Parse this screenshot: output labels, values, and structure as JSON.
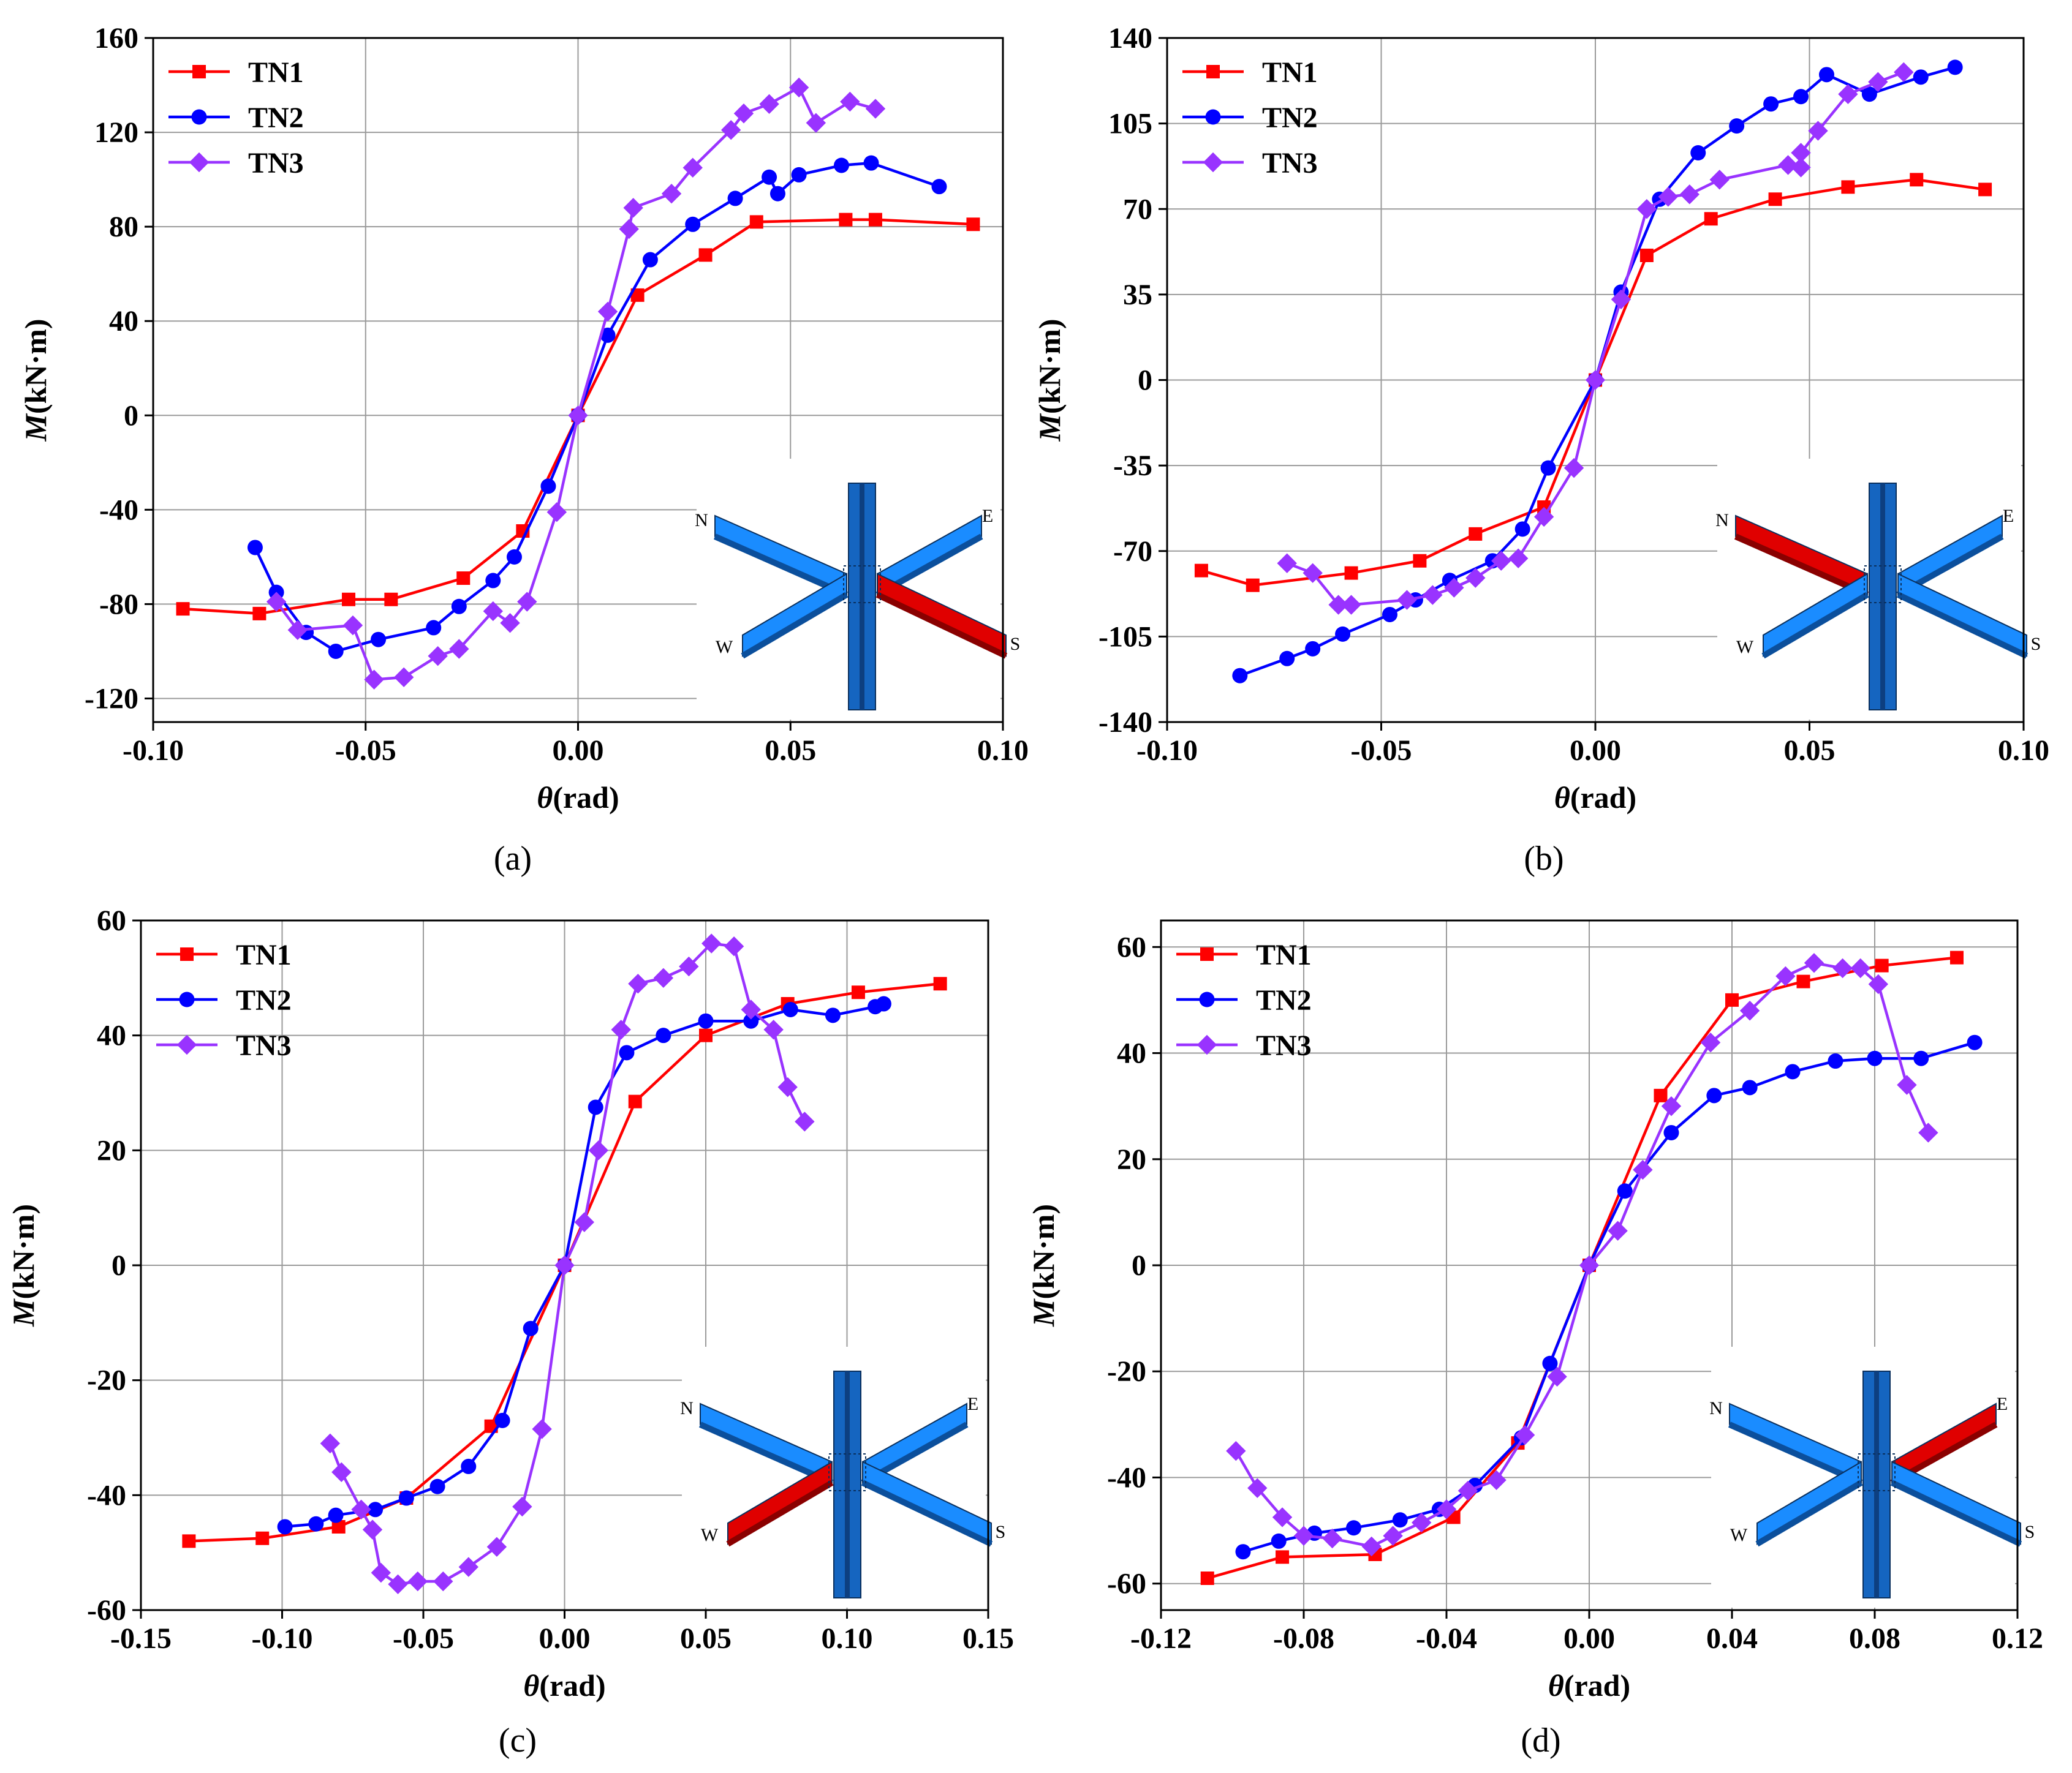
{
  "colors": {
    "TN1": "#ff0000",
    "TN2": "#0000ff",
    "TN3": "#9933ff",
    "beam_blue": "#1a8cff",
    "beam_red": "#e00000",
    "column_blue": "#1565c0"
  },
  "chart_data": [
    {
      "panel_label": "(a)",
      "type": "line",
      "xlabel_sym": "θ",
      "xlabel_unit": "(rad)",
      "ylabel_sym": "M",
      "ylabel_unit": "(kN·m)",
      "xlim": [
        -0.1,
        0.1
      ],
      "ylim": [
        -130,
        160
      ],
      "xticks": [
        -0.1,
        -0.05,
        0.0,
        0.05,
        0.1
      ],
      "xtick_labels": [
        "-0.10",
        "-0.05",
        "0.00",
        "0.05",
        "0.10"
      ],
      "yticks": [
        -120,
        -80,
        -40,
        0,
        40,
        80,
        120,
        160
      ],
      "ytick_labels": [
        "-120",
        "-80",
        "-40",
        "0",
        "40",
        "80",
        "120",
        "160"
      ],
      "legend_position": "top-left",
      "inset_highlight": "S",
      "inset_labels": [
        "N",
        "E",
        "W",
        "S"
      ],
      "series": [
        {
          "name": "TN1",
          "marker": "square",
          "x": [
            -0.093,
            -0.075,
            -0.054,
            -0.044,
            -0.027,
            -0.013,
            0.0,
            0.014,
            0.03,
            0.042,
            0.063,
            0.07,
            0.093
          ],
          "y": [
            -82,
            -84,
            -78,
            -78,
            -69,
            -49,
            0,
            51,
            68,
            82,
            83,
            83,
            81
          ]
        },
        {
          "name": "TN2",
          "marker": "circle",
          "x": [
            -0.076,
            -0.071,
            -0.064,
            -0.057,
            -0.047,
            -0.034,
            -0.028,
            -0.02,
            -0.015,
            -0.007,
            0.0,
            0.007,
            0.017,
            0.027,
            0.037,
            0.045,
            0.047,
            0.052,
            0.062,
            0.069,
            0.085
          ],
          "y": [
            -56,
            -75,
            -92,
            -100,
            -95,
            -90,
            -81,
            -70,
            -60,
            -30,
            0,
            34,
            66,
            81,
            92,
            101,
            94,
            102,
            106,
            107,
            97
          ]
        },
        {
          "name": "TN3",
          "marker": "diamond",
          "x": [
            -0.071,
            -0.066,
            -0.053,
            -0.048,
            -0.041,
            -0.033,
            -0.028,
            -0.02,
            -0.016,
            -0.012,
            -0.005,
            0.0,
            0.007,
            0.012,
            0.013,
            0.022,
            0.027,
            0.036,
            0.039,
            0.045,
            0.052,
            0.056,
            0.064,
            0.07
          ],
          "y": [
            -79,
            -91,
            -89,
            -112,
            -111,
            -102,
            -99,
            -83,
            -88,
            -79,
            -41,
            0,
            44,
            79,
            88,
            94,
            105,
            121,
            128,
            132,
            139,
            124,
            133,
            130
          ]
        }
      ]
    },
    {
      "panel_label": "(b)",
      "type": "line",
      "xlabel_sym": "θ",
      "xlabel_unit": "(rad)",
      "ylabel_sym": "M",
      "ylabel_unit": "(kN·m)",
      "xlim": [
        -0.1,
        0.1
      ],
      "ylim": [
        -140,
        140
      ],
      "xticks": [
        -0.1,
        -0.05,
        0.0,
        0.05,
        0.1
      ],
      "xtick_labels": [
        "-0.10",
        "-0.05",
        "0.00",
        "0.05",
        "0.10"
      ],
      "yticks": [
        -140,
        -105,
        -70,
        -35,
        0,
        35,
        70,
        105,
        140
      ],
      "ytick_labels": [
        "-140",
        "-105",
        "-70",
        "-35",
        "0",
        "35",
        "70",
        "105",
        "140"
      ],
      "legend_position": "top-left",
      "inset_highlight": "N",
      "inset_labels": [
        "N",
        "E",
        "W",
        "S"
      ],
      "series": [
        {
          "name": "TN1",
          "marker": "square",
          "x": [
            -0.092,
            -0.08,
            -0.057,
            -0.041,
            -0.028,
            -0.012,
            0.0,
            0.012,
            0.027,
            0.042,
            0.059,
            0.075,
            0.091
          ],
          "y": [
            -78,
            -84,
            -79,
            -74,
            -63,
            -52,
            0,
            51,
            66,
            74,
            79,
            82,
            78
          ]
        },
        {
          "name": "TN2",
          "marker": "circle",
          "x": [
            -0.083,
            -0.072,
            -0.066,
            -0.059,
            -0.048,
            -0.042,
            -0.034,
            -0.024,
            -0.017,
            -0.011,
            0.0,
            0.006,
            0.015,
            0.024,
            0.033,
            0.041,
            0.048,
            0.054,
            0.064,
            0.076,
            0.084
          ],
          "y": [
            -121,
            -114,
            -110,
            -104,
            -96,
            -90,
            -82,
            -74,
            -61,
            -36,
            0,
            36,
            74,
            93,
            104,
            113,
            116,
            125,
            117,
            124,
            128
          ]
        },
        {
          "name": "TN3",
          "marker": "diamond",
          "x": [
            -0.072,
            -0.066,
            -0.06,
            -0.057,
            -0.044,
            -0.038,
            -0.033,
            -0.028,
            -0.022,
            -0.018,
            -0.012,
            -0.005,
            0.0,
            0.006,
            0.012,
            0.017,
            0.022,
            0.029,
            0.045,
            0.048,
            0.048,
            0.052,
            0.059,
            0.066,
            0.072
          ],
          "y": [
            -75,
            -79,
            -92,
            -92,
            -90,
            -88,
            -85,
            -81,
            -74,
            -73,
            -56,
            -36,
            0,
            33,
            70,
            75,
            76,
            82,
            88,
            87,
            93,
            102,
            117,
            122,
            126
          ]
        }
      ]
    },
    {
      "panel_label": "(c)",
      "type": "line",
      "xlabel_sym": "θ",
      "xlabel_unit": "(rad)",
      "ylabel_sym": "M",
      "ylabel_unit": "(kN·m)",
      "xlim": [
        -0.15,
        0.15
      ],
      "ylim": [
        -60,
        60
      ],
      "xticks": [
        -0.15,
        -0.1,
        -0.05,
        0.0,
        0.05,
        0.1,
        0.15
      ],
      "xtick_labels": [
        "-0.15",
        "-0.10",
        "-0.05",
        "0.00",
        "0.05",
        "0.10",
        "0.15"
      ],
      "yticks": [
        -60,
        -40,
        -20,
        0,
        20,
        40,
        60
      ],
      "ytick_labels": [
        "-60",
        "-40",
        "-20",
        "0",
        "20",
        "40",
        "60"
      ],
      "legend_position": "top-left",
      "inset_highlight": "W",
      "inset_labels": [
        "N",
        "E",
        "W",
        "S"
      ],
      "series": [
        {
          "name": "TN1",
          "marker": "square",
          "x": [
            -0.133,
            -0.107,
            -0.08,
            -0.056,
            -0.026,
            0.0,
            0.025,
            0.05,
            0.079,
            0.104,
            0.133
          ],
          "y": [
            -48,
            -47.5,
            -45.5,
            -40.5,
            -28,
            0,
            28.5,
            40,
            45.5,
            47.5,
            49
          ]
        },
        {
          "name": "TN2",
          "marker": "circle",
          "x": [
            -0.099,
            -0.088,
            -0.081,
            -0.067,
            -0.056,
            -0.045,
            -0.034,
            -0.022,
            -0.012,
            0.0,
            0.011,
            0.022,
            0.035,
            0.05,
            0.066,
            0.08,
            0.095,
            0.11,
            0.113
          ],
          "y": [
            -45.5,
            -45,
            -43.5,
            -42.5,
            -40.5,
            -38.5,
            -35,
            -27,
            -11,
            0,
            27.5,
            37,
            40,
            42.5,
            42.5,
            44.5,
            43.5,
            45,
            45.5
          ]
        },
        {
          "name": "TN3",
          "marker": "diamond",
          "x": [
            -0.083,
            -0.079,
            -0.072,
            -0.068,
            -0.065,
            -0.059,
            -0.052,
            -0.043,
            -0.034,
            -0.024,
            -0.015,
            -0.008,
            0.0,
            0.007,
            0.012,
            0.02,
            0.026,
            0.035,
            0.044,
            0.052,
            0.06,
            0.066,
            0.074,
            0.079,
            0.085
          ],
          "y": [
            -31,
            -36,
            -42.5,
            -46,
            -53.5,
            -55.5,
            -55,
            -55,
            -52.5,
            -49,
            -42,
            -28.5,
            0,
            7.5,
            20,
            41,
            49,
            50,
            52,
            56,
            55.5,
            44.5,
            41,
            31,
            25
          ]
        }
      ]
    },
    {
      "panel_label": "(d)",
      "type": "line",
      "xlabel_sym": "θ",
      "xlabel_unit": "(rad)",
      "ylabel_sym": "M",
      "ylabel_unit": "(kN·m)",
      "xlim": [
        -0.12,
        0.12
      ],
      "ylim": [
        -65,
        65
      ],
      "xticks": [
        -0.12,
        -0.08,
        -0.04,
        0.0,
        0.04,
        0.08,
        0.12
      ],
      "xtick_labels": [
        "-0.12",
        "-0.08",
        "-0.04",
        "0.00",
        "0.04",
        "0.08",
        "0.12"
      ],
      "yticks": [
        -60,
        -40,
        -20,
        0,
        20,
        40,
        60
      ],
      "ytick_labels": [
        "-60",
        "-40",
        "-20",
        "0",
        "20",
        "40",
        "60"
      ],
      "legend_position": "top-left",
      "inset_highlight": "E",
      "inset_labels": [
        "N",
        "E",
        "W",
        "S"
      ],
      "series": [
        {
          "name": "TN1",
          "marker": "square",
          "x": [
            -0.107,
            -0.086,
            -0.06,
            -0.038,
            -0.02,
            0.0,
            0.02,
            0.04,
            0.06,
            0.082,
            0.103
          ],
          "y": [
            -59,
            -55,
            -54.5,
            -47.5,
            -33.5,
            0,
            32,
            50,
            53.5,
            56.5,
            58
          ]
        },
        {
          "name": "TN2",
          "marker": "circle",
          "x": [
            -0.097,
            -0.087,
            -0.077,
            -0.066,
            -0.053,
            -0.042,
            -0.032,
            -0.019,
            -0.011,
            0.0,
            0.01,
            0.023,
            0.035,
            0.045,
            0.057,
            0.069,
            0.08,
            0.093,
            0.108
          ],
          "y": [
            -54,
            -52,
            -50.5,
            -49.5,
            -48,
            -46,
            -41.5,
            -32.5,
            -18.5,
            0,
            14,
            25,
            32,
            33.5,
            36.5,
            38.5,
            39,
            39,
            42
          ]
        },
        {
          "name": "TN3",
          "marker": "diamond",
          "x": [
            -0.099,
            -0.093,
            -0.086,
            -0.08,
            -0.072,
            -0.061,
            -0.055,
            -0.047,
            -0.04,
            -0.034,
            -0.026,
            -0.018,
            -0.009,
            0.0,
            0.008,
            0.015,
            0.023,
            0.034,
            0.045,
            0.055,
            0.063,
            0.071,
            0.076,
            0.081,
            0.089,
            0.095
          ],
          "y": [
            -35,
            -42,
            -47.5,
            -51,
            -51.5,
            -53,
            -51,
            -48.5,
            -46,
            -42.5,
            -40.5,
            -32,
            -21,
            0,
            6.5,
            18,
            30,
            42,
            48,
            54.5,
            57,
            56,
            56,
            53,
            34,
            25
          ]
        }
      ]
    }
  ]
}
